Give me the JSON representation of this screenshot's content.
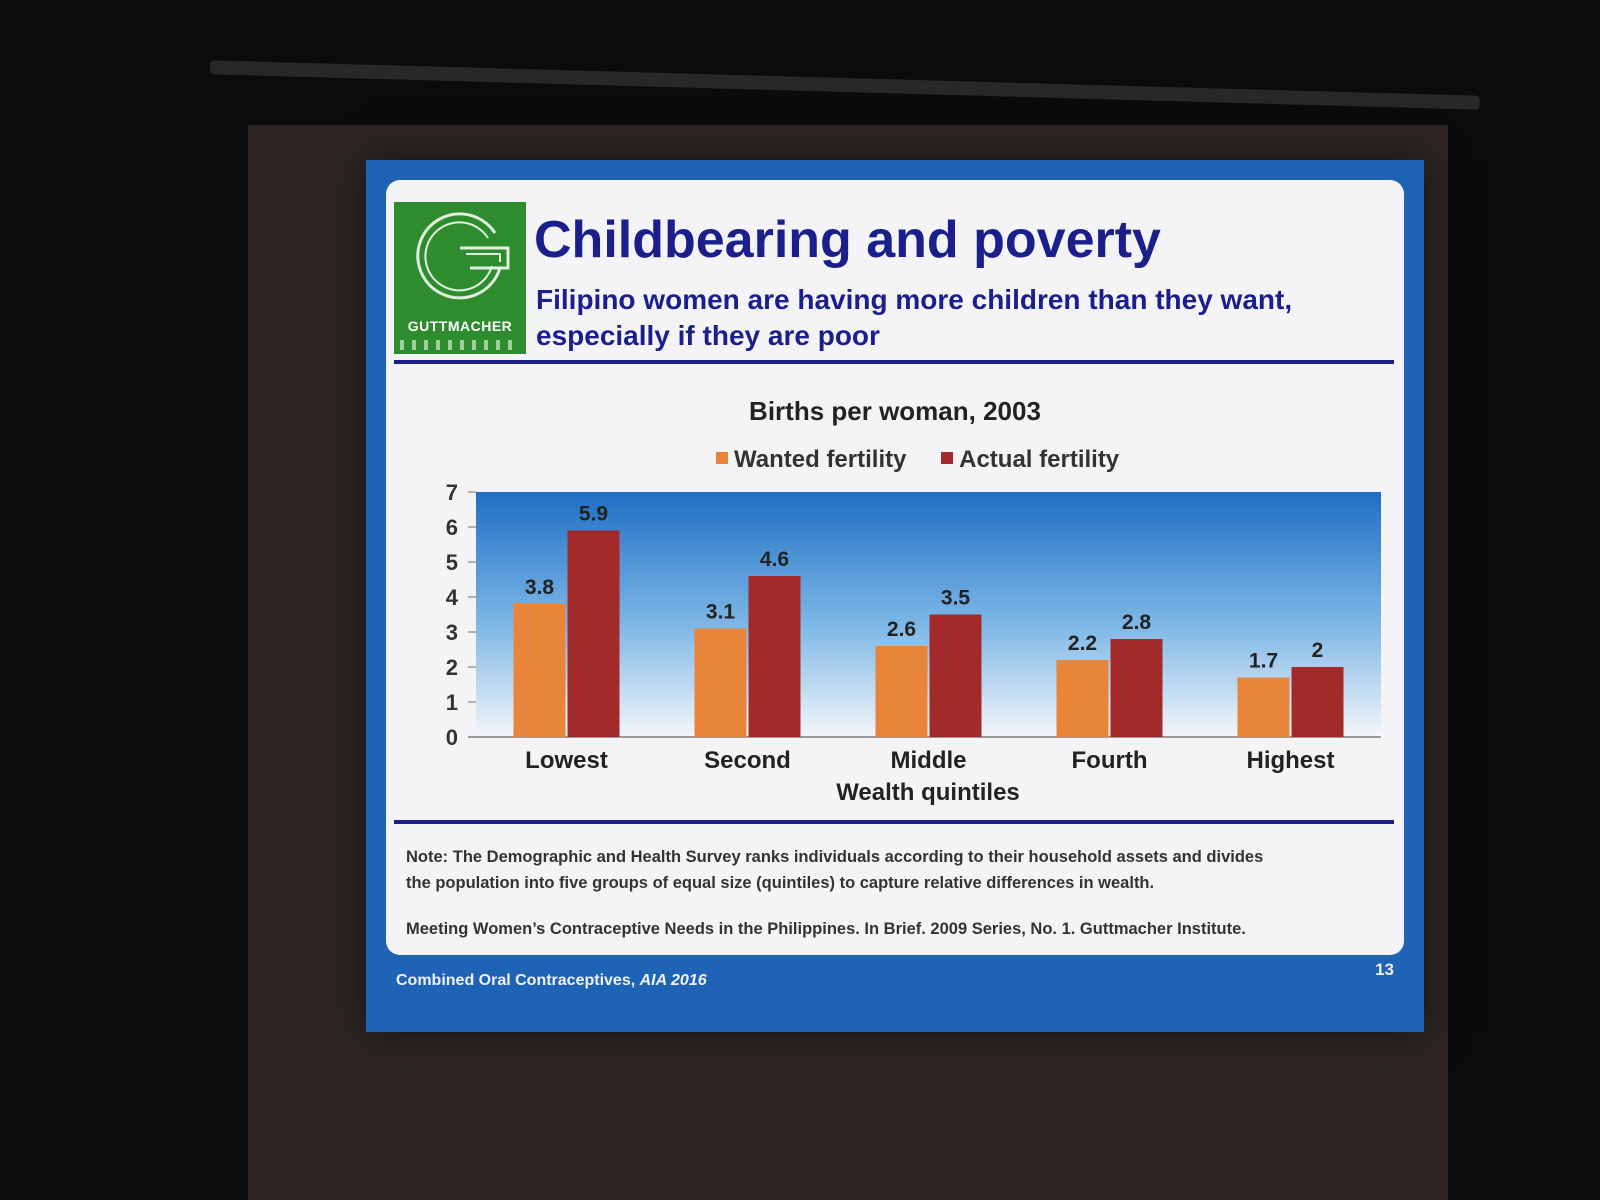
{
  "slide": {
    "logo_text": "GUTTMACHER",
    "title": "Childbearing and poverty",
    "subtitle": "Filipino women are having more children than they want, especially if they are poor",
    "note": "Note: The Demographic and Health Survey ranks individuals according to their household assets and divides the population into five groups of equal size (quintiles) to capture relative differences in wealth.",
    "source": "Meeting Women’s Contraceptive Needs in the Philippines. In Brief. 2009 Series, No. 1. Guttmacher Institute.",
    "footer_main": "Combined Oral Contraceptives, ",
    "footer_italic": "AIA 2016",
    "page_number": "13"
  },
  "colors": {
    "wanted": "#e8853a",
    "actual": "#a32a2a",
    "title": "#1a1f8c",
    "slide_border": "#1f63b6"
  },
  "chart_data": {
    "type": "bar",
    "title": "Births per woman, 2003",
    "xlabel": "Wealth quintiles",
    "ylabel": "",
    "ylim": [
      0,
      7
    ],
    "yticks": [
      0,
      1,
      2,
      3,
      4,
      5,
      6,
      7
    ],
    "categories": [
      "Lowest",
      "Second",
      "Middle",
      "Fourth",
      "Highest"
    ],
    "series": [
      {
        "name": "Wanted fertility",
        "values": [
          3.8,
          3.1,
          2.6,
          2.2,
          1.7
        ],
        "labels": [
          "3.8",
          "3.1",
          "2.6",
          "2.2",
          "1.7"
        ]
      },
      {
        "name": "Actual fertility",
        "values": [
          5.9,
          4.6,
          3.5,
          2.8,
          2.0
        ],
        "labels": [
          "5.9",
          "4.6",
          "3.5",
          "2.8",
          "2"
        ]
      }
    ],
    "legend": "top-center",
    "grid": false
  }
}
